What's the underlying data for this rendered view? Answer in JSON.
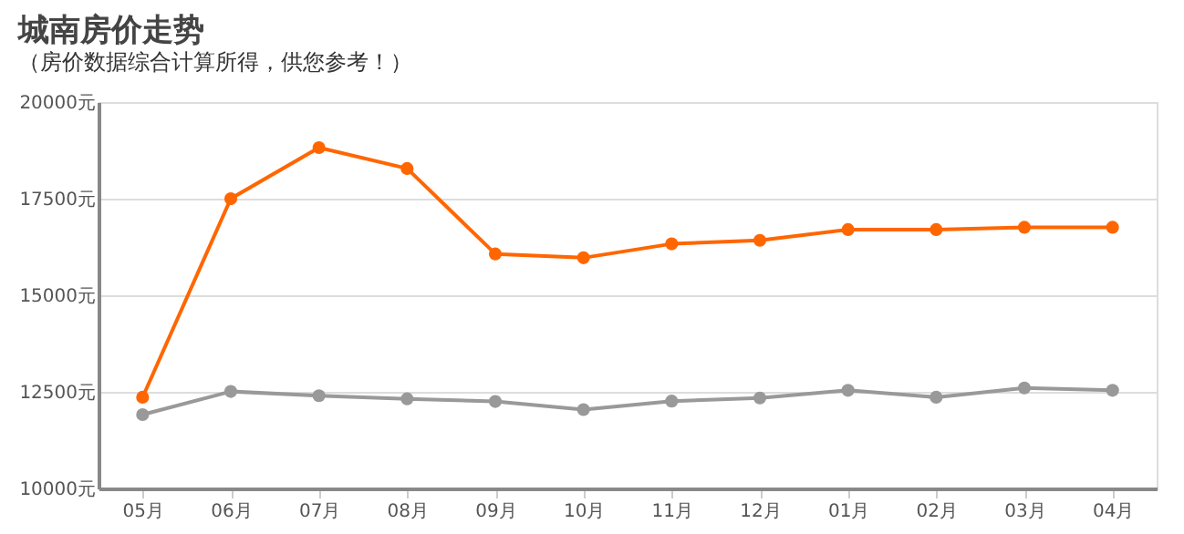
{
  "chart_data": {
    "type": "line",
    "title": "城南房价走势",
    "subtitle": "（房价数据综合计算所得，供您参考！）",
    "categories": [
      "05月",
      "06月",
      "07月",
      "08月",
      "09月",
      "10月",
      "11月",
      "12月",
      "01月",
      "02月",
      "03月",
      "04月"
    ],
    "series": [
      {
        "color": "#ff6600",
        "values": [
          12360,
          17500,
          18820,
          18280,
          16070,
          15970,
          16330,
          16420,
          16700,
          16700,
          16760,
          16760
        ]
      },
      {
        "color": "#999999",
        "values": [
          11910,
          12510,
          12400,
          12320,
          12250,
          12040,
          12260,
          12340,
          12540,
          12360,
          12600,
          12540
        ]
      }
    ],
    "ylim": [
      10000,
      20000
    ],
    "yticks": [
      {
        "value": 10000,
        "label": "10000元"
      },
      {
        "value": 12500,
        "label": "12500元"
      },
      {
        "value": 15000,
        "label": "15000元"
      },
      {
        "value": 17500,
        "label": "17500元"
      },
      {
        "value": 20000,
        "label": "20000元"
      }
    ],
    "grid": "y",
    "marker": "circle",
    "line_style": "solid",
    "legend": false
  }
}
